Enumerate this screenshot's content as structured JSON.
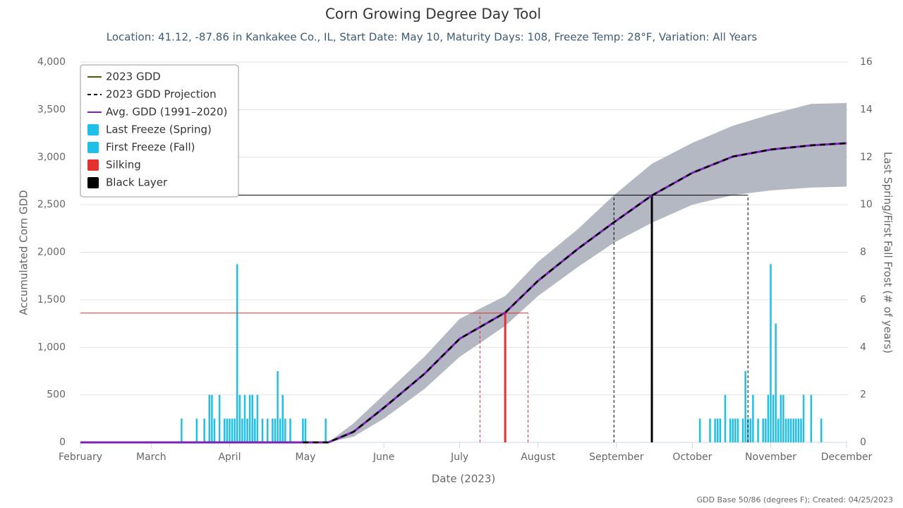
{
  "chart_data": {
    "type": "line",
    "title": "Corn Growing Degree Day Tool",
    "subtitle": "Location: 41.12, -87.86 in Kankakee Co., IL, Start Date: May 10, Maturity Days: 108, Freeze Temp: 28°F, Variation: All Years",
    "x_label": "Date (2023)",
    "y_label": "Accumulated Corn GDD",
    "y2_label": "Last Spring/First Fall Frost (# of years)",
    "credit": "GDD Base 50/86 (degrees F); Created: 04/25/2023",
    "legend": "top-left",
    "grid": true,
    "xlim": [
      32,
      335
    ],
    "xticks": [
      {
        "value": 32,
        "label": "February"
      },
      {
        "value": 60,
        "label": "March"
      },
      {
        "value": 91,
        "label": "April"
      },
      {
        "value": 121,
        "label": "May"
      },
      {
        "value": 152,
        "label": "June"
      },
      {
        "value": 182,
        "label": "July"
      },
      {
        "value": 213,
        "label": "August"
      },
      {
        "value": 244,
        "label": "September"
      },
      {
        "value": 274,
        "label": "October"
      },
      {
        "value": 305,
        "label": "November"
      },
      {
        "value": 335,
        "label": "December"
      }
    ],
    "ylim": [
      0,
      4000
    ],
    "yticks": [
      0,
      500,
      {
        "value": 1000,
        "label": "1,000"
      },
      {
        "value": 1500,
        "label": "1,500"
      },
      {
        "value": 2000,
        "label": "2,000"
      },
      {
        "value": 2500,
        "label": "2,500"
      },
      {
        "value": 3000,
        "label": "3,000"
      },
      {
        "value": 3500,
        "label": "3,500"
      },
      {
        "value": 4000,
        "label": "4,000"
      }
    ],
    "y2lim": [
      0,
      16
    ],
    "y2ticks": [
      0,
      2,
      4,
      6,
      8,
      10,
      12,
      14,
      16
    ],
    "series": [
      {
        "name": "2023 GDD",
        "type": "line",
        "color": "#3f6212",
        "x": [
          32,
          120
        ],
        "values": [
          0,
          0
        ]
      },
      {
        "name": "2023 GDD Projection",
        "type": "line",
        "dashed": true,
        "color": "#000000",
        "x": [
          120,
          130,
          140,
          152,
          168,
          182,
          200,
          213,
          229,
          243,
          258,
          274,
          290,
          305,
          321,
          335
        ],
        "values": [
          0,
          0,
          111,
          364,
          720,
          1090,
          1365,
          1700,
          2041,
          2315,
          2597,
          2835,
          3006,
          3080,
          3124,
          3147
        ]
      },
      {
        "name": "Avg. GDD (1991–2020)",
        "type": "line",
        "color": "#7b22b8",
        "x": [
          32,
          120,
          130,
          140,
          152,
          168,
          182,
          200,
          213,
          229,
          243,
          258,
          274,
          290,
          305,
          321,
          335
        ],
        "values": [
          0,
          0,
          0,
          111,
          364,
          720,
          1090,
          1365,
          1700,
          2041,
          2315,
          2597,
          2835,
          3006,
          3080,
          3124,
          3147
        ]
      },
      {
        "name": "Last Freeze (Spring)",
        "type": "bar",
        "axis": "y2",
        "color": "#1ec0e8",
        "x": [
          72,
          78,
          81,
          83,
          84,
          85,
          87,
          89,
          90,
          91,
          92,
          93,
          94,
          95,
          96,
          97,
          98,
          99,
          100,
          101,
          102,
          104,
          106,
          108,
          109,
          110,
          111,
          112,
          113,
          115,
          120,
          121,
          129
        ],
        "values": [
          1,
          1,
          1,
          2,
          2,
          1,
          2,
          1,
          1,
          1,
          1,
          1,
          7.5,
          2,
          1,
          2,
          1,
          2,
          2,
          1,
          2,
          1,
          1,
          1,
          1,
          3,
          1,
          2,
          1,
          1,
          1,
          1,
          1
        ]
      },
      {
        "name": "First Freeze (Fall)",
        "type": "bar",
        "axis": "y2",
        "color": "#1ec0e8",
        "x": [
          277,
          281,
          283,
          284,
          285,
          287,
          289,
          290,
          291,
          292,
          294,
          295,
          296,
          297,
          298,
          300,
          302,
          303,
          304,
          305,
          306,
          307,
          308,
          309,
          310,
          311,
          312,
          313,
          314,
          315,
          316,
          317,
          318,
          321,
          325
        ],
        "values": [
          1,
          1,
          1,
          1,
          1,
          2,
          1,
          1,
          1,
          1,
          1,
          3,
          1,
          1,
          2,
          1,
          1,
          1,
          2,
          7.5,
          2,
          5,
          1,
          2,
          2,
          1,
          1,
          1,
          1,
          1,
          1,
          1,
          2,
          2,
          1
        ]
      },
      {
        "name": "Silking",
        "type": "marker",
        "color": "#e53030",
        "x": 200,
        "value": 1360,
        "x_early": 190,
        "x_late": 209
      },
      {
        "name": "Black Layer",
        "type": "marker",
        "color": "#000000",
        "x": 258,
        "value": 2600,
        "x_early": 243,
        "x_late": 296
      },
      {
        "type": "range",
        "color": "#b3b8c3",
        "x": [
          130,
          140,
          152,
          168,
          182,
          200,
          213,
          229,
          243,
          258,
          274,
          290,
          305,
          321,
          335
        ],
        "low": [
          0,
          60,
          250,
          560,
          900,
          1225,
          1540,
          1850,
          2100,
          2310,
          2500,
          2600,
          2650,
          2680,
          2690
        ],
        "high": [
          0,
          200,
          500,
          900,
          1300,
          1540,
          1900,
          2250,
          2600,
          2930,
          3150,
          3330,
          3450,
          3560,
          3570
        ]
      }
    ]
  }
}
